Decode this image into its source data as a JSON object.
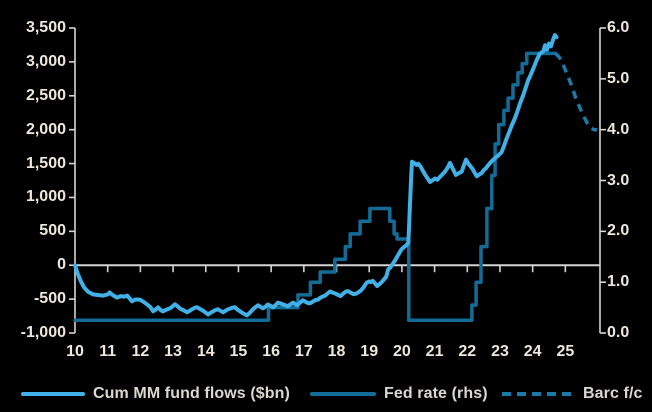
{
  "chart_data": {
    "type": "line",
    "title": "",
    "background": "#000000",
    "axis_color": "#d4d4d4",
    "label_color": "#efe7db",
    "grid": "zero-line-only",
    "x_axis": {
      "range": [
        10,
        26.06
      ],
      "tick_values": [
        10,
        11,
        12,
        13,
        14,
        15,
        16,
        17,
        18,
        19,
        20,
        21,
        22,
        23,
        24,
        25
      ],
      "tick_labels": [
        "10",
        "11",
        "12",
        "13",
        "14",
        "15",
        "16",
        "17",
        "18",
        "19",
        "20",
        "21",
        "22",
        "23",
        "24",
        "25"
      ]
    },
    "y_left": {
      "range": [
        -1000,
        3500
      ],
      "tick_values": [
        3500,
        3000,
        2500,
        2000,
        1500,
        1000,
        500,
        0,
        -500,
        -1000
      ],
      "tick_labels": [
        "3,500",
        "3,000",
        "2,500",
        "2,000",
        "1,500",
        "1,000",
        "500",
        "0",
        "-500",
        "-1,000"
      ]
    },
    "y_right": {
      "range": [
        0,
        6
      ],
      "tick_values": [
        6,
        5,
        4,
        3,
        2,
        1,
        0
      ],
      "tick_labels": [
        "6.0",
        "5.0",
        "4.0",
        "3.0",
        "2.0",
        "1.0",
        "0.0"
      ]
    },
    "series": [
      {
        "name": "Fed rate (rhs)",
        "axis": "right",
        "style": "solid",
        "color": "#136c97",
        "width": 3.5,
        "points": [
          [
            10.0,
            0.25
          ],
          [
            15.92,
            0.25
          ],
          [
            15.92,
            0.5
          ],
          [
            16.82,
            0.5
          ],
          [
            16.82,
            0.75
          ],
          [
            17.2,
            0.75
          ],
          [
            17.2,
            1.0
          ],
          [
            17.5,
            1.0
          ],
          [
            17.5,
            1.2
          ],
          [
            17.95,
            1.2
          ],
          [
            17.95,
            1.45
          ],
          [
            18.27,
            1.45
          ],
          [
            18.27,
            1.7
          ],
          [
            18.42,
            1.7
          ],
          [
            18.42,
            1.95
          ],
          [
            18.72,
            1.95
          ],
          [
            18.72,
            2.2
          ],
          [
            19.02,
            2.2
          ],
          [
            19.02,
            2.45
          ],
          [
            19.63,
            2.45
          ],
          [
            19.63,
            2.2
          ],
          [
            19.76,
            2.2
          ],
          [
            19.76,
            1.95
          ],
          [
            19.85,
            1.95
          ],
          [
            19.85,
            1.85
          ],
          [
            20.21,
            1.85
          ],
          [
            20.21,
            0.25
          ],
          [
            22.14,
            0.25
          ],
          [
            22.14,
            0.55
          ],
          [
            22.27,
            0.55
          ],
          [
            22.27,
            1.0
          ],
          [
            22.42,
            1.0
          ],
          [
            22.42,
            1.7
          ],
          [
            22.6,
            1.7
          ],
          [
            22.6,
            2.45
          ],
          [
            22.75,
            2.45
          ],
          [
            22.75,
            3.1
          ],
          [
            22.85,
            3.1
          ],
          [
            22.85,
            3.72
          ],
          [
            22.96,
            3.72
          ],
          [
            22.96,
            4.1
          ],
          [
            23.12,
            4.1
          ],
          [
            23.12,
            4.38
          ],
          [
            23.25,
            4.38
          ],
          [
            23.25,
            4.62
          ],
          [
            23.4,
            4.62
          ],
          [
            23.4,
            4.88
          ],
          [
            23.55,
            4.88
          ],
          [
            23.55,
            5.12
          ],
          [
            23.68,
            5.12
          ],
          [
            23.68,
            5.3
          ],
          [
            23.82,
            5.3
          ],
          [
            23.82,
            5.5
          ],
          [
            24.7,
            5.5
          ]
        ]
      },
      {
        "name": "Barc f/c",
        "axis": "right",
        "style": "dashed",
        "color": "#1a7aa8",
        "width": 3.5,
        "points": [
          [
            24.7,
            5.5
          ],
          [
            24.82,
            5.42
          ],
          [
            24.95,
            5.25
          ],
          [
            25.08,
            5.05
          ],
          [
            25.2,
            4.85
          ],
          [
            25.32,
            4.62
          ],
          [
            25.45,
            4.42
          ],
          [
            25.57,
            4.25
          ],
          [
            25.68,
            4.12
          ],
          [
            25.78,
            4.03
          ],
          [
            25.88,
            4.0
          ],
          [
            25.97,
            4.0
          ]
        ]
      },
      {
        "name": "Cum MM fund flows ($bn)",
        "axis": "left",
        "style": "solid",
        "color": "#41b0e6",
        "width": 4,
        "points": [
          [
            10.0,
            0
          ],
          [
            10.08,
            -120
          ],
          [
            10.17,
            -230
          ],
          [
            10.28,
            -330
          ],
          [
            10.4,
            -390
          ],
          [
            10.55,
            -430
          ],
          [
            10.7,
            -440
          ],
          [
            10.86,
            -448
          ],
          [
            11.0,
            -430
          ],
          [
            11.06,
            -402
          ],
          [
            11.15,
            -440
          ],
          [
            11.28,
            -478
          ],
          [
            11.4,
            -455
          ],
          [
            11.5,
            -465
          ],
          [
            11.6,
            -448
          ],
          [
            11.74,
            -533
          ],
          [
            11.85,
            -505
          ],
          [
            11.99,
            -510
          ],
          [
            12.1,
            -540
          ],
          [
            12.2,
            -577
          ],
          [
            12.3,
            -615
          ],
          [
            12.39,
            -680
          ],
          [
            12.47,
            -655
          ],
          [
            12.54,
            -622
          ],
          [
            12.62,
            -660
          ],
          [
            12.69,
            -682
          ],
          [
            12.8,
            -655
          ],
          [
            12.91,
            -636
          ],
          [
            13.0,
            -600
          ],
          [
            13.06,
            -577
          ],
          [
            13.15,
            -610
          ],
          [
            13.21,
            -638
          ],
          [
            13.32,
            -665
          ],
          [
            13.43,
            -695
          ],
          [
            13.52,
            -668
          ],
          [
            13.58,
            -650
          ],
          [
            13.66,
            -628
          ],
          [
            13.73,
            -620
          ],
          [
            13.82,
            -645
          ],
          [
            13.91,
            -668
          ],
          [
            14.0,
            -700
          ],
          [
            14.07,
            -726
          ],
          [
            14.15,
            -700
          ],
          [
            14.22,
            -682
          ],
          [
            14.3,
            -660
          ],
          [
            14.37,
            -650
          ],
          [
            14.45,
            -672
          ],
          [
            14.53,
            -695
          ],
          [
            14.6,
            -672
          ],
          [
            14.68,
            -650
          ],
          [
            14.78,
            -632
          ],
          [
            14.89,
            -620
          ],
          [
            14.97,
            -655
          ],
          [
            15.05,
            -682
          ],
          [
            15.15,
            -712
          ],
          [
            15.26,
            -740
          ],
          [
            15.35,
            -700
          ],
          [
            15.44,
            -652
          ],
          [
            15.52,
            -620
          ],
          [
            15.6,
            -592
          ],
          [
            15.68,
            -615
          ],
          [
            15.75,
            -636
          ],
          [
            15.83,
            -610
          ],
          [
            15.9,
            -580
          ],
          [
            15.98,
            -600
          ],
          [
            16.06,
            -622
          ],
          [
            16.14,
            -585
          ],
          [
            16.21,
            -552
          ],
          [
            16.29,
            -565
          ],
          [
            16.36,
            -578
          ],
          [
            16.44,
            -592
          ],
          [
            16.51,
            -606
          ],
          [
            16.59,
            -578
          ],
          [
            16.67,
            -552
          ],
          [
            16.73,
            -570
          ],
          [
            16.79,
            -590
          ],
          [
            16.88,
            -555
          ],
          [
            16.97,
            -518
          ],
          [
            17.05,
            -540
          ],
          [
            17.12,
            -558
          ],
          [
            17.19,
            -562
          ],
          [
            17.28,
            -535
          ],
          [
            17.36,
            -512
          ],
          [
            17.43,
            -510
          ],
          [
            17.5,
            -480
          ],
          [
            17.58,
            -462
          ],
          [
            17.65,
            -448
          ],
          [
            17.73,
            -415
          ],
          [
            17.8,
            -388
          ],
          [
            17.89,
            -405
          ],
          [
            17.98,
            -422
          ],
          [
            18.05,
            -440
          ],
          [
            18.12,
            -455
          ],
          [
            18.2,
            -420
          ],
          [
            18.28,
            -390
          ],
          [
            18.35,
            -382
          ],
          [
            18.44,
            -405
          ],
          [
            18.52,
            -428
          ],
          [
            18.6,
            -420
          ],
          [
            18.67,
            -400
          ],
          [
            18.75,
            -372
          ],
          [
            18.82,
            -330
          ],
          [
            18.92,
            -258
          ],
          [
            19.0,
            -240
          ],
          [
            19.05,
            -248
          ],
          [
            19.11,
            -232
          ],
          [
            19.18,
            -270
          ],
          [
            19.24,
            -306
          ],
          [
            19.3,
            -285
          ],
          [
            19.37,
            -255
          ],
          [
            19.45,
            -212
          ],
          [
            19.52,
            -170
          ],
          [
            19.58,
            -62
          ],
          [
            19.65,
            -30
          ],
          [
            19.72,
            20
          ],
          [
            19.79,
            70
          ],
          [
            19.84,
            114
          ],
          [
            19.92,
            180
          ],
          [
            19.99,
            237
          ],
          [
            20.07,
            270
          ],
          [
            20.14,
            296
          ],
          [
            20.2,
            340
          ],
          [
            20.24,
            800
          ],
          [
            20.28,
            1280
          ],
          [
            20.31,
            1528
          ],
          [
            20.38,
            1505
          ],
          [
            20.45,
            1480
          ],
          [
            20.5,
            1497
          ],
          [
            20.57,
            1460
          ],
          [
            20.64,
            1395
          ],
          [
            20.72,
            1330
          ],
          [
            20.8,
            1270
          ],
          [
            20.86,
            1228
          ],
          [
            20.94,
            1255
          ],
          [
            21.02,
            1280
          ],
          [
            21.09,
            1262
          ],
          [
            21.16,
            1302
          ],
          [
            21.24,
            1340
          ],
          [
            21.31,
            1376
          ],
          [
            21.4,
            1440
          ],
          [
            21.47,
            1509
          ],
          [
            21.55,
            1430
          ],
          [
            21.62,
            1360
          ],
          [
            21.65,
            1332
          ],
          [
            21.73,
            1355
          ],
          [
            21.83,
            1381
          ],
          [
            21.9,
            1480
          ],
          [
            21.96,
            1558
          ],
          [
            22.03,
            1500
          ],
          [
            22.1,
            1460
          ],
          [
            22.16,
            1421
          ],
          [
            22.23,
            1360
          ],
          [
            22.29,
            1312
          ],
          [
            22.37,
            1340
          ],
          [
            22.44,
            1361
          ],
          [
            22.5,
            1400
          ],
          [
            22.57,
            1430
          ],
          [
            22.65,
            1480
          ],
          [
            22.72,
            1520
          ],
          [
            22.8,
            1558
          ],
          [
            22.87,
            1590
          ],
          [
            22.95,
            1620
          ],
          [
            23.05,
            1668
          ],
          [
            23.13,
            1770
          ],
          [
            23.2,
            1865
          ],
          [
            23.28,
            1960
          ],
          [
            23.36,
            2062
          ],
          [
            23.44,
            2150
          ],
          [
            23.51,
            2235
          ],
          [
            23.61,
            2383
          ],
          [
            23.69,
            2480
          ],
          [
            23.76,
            2580
          ],
          [
            23.86,
            2727
          ],
          [
            23.94,
            2810
          ],
          [
            24.02,
            2900
          ],
          [
            24.12,
            3023
          ],
          [
            24.22,
            3122
          ],
          [
            24.28,
            3140
          ],
          [
            24.33,
            3160
          ],
          [
            24.38,
            3245
          ],
          [
            24.44,
            3180
          ],
          [
            24.5,
            3270
          ],
          [
            24.56,
            3230
          ],
          [
            24.62,
            3320
          ],
          [
            24.68,
            3395
          ],
          [
            24.73,
            3365
          ]
        ]
      }
    ],
    "legend_position": "bottom"
  },
  "legend": {
    "items": [
      {
        "label": "Cum MM fund flows ($bn)",
        "style": "solid",
        "color": "#41b0e6"
      },
      {
        "label": "Fed rate (rhs)",
        "style": "solid",
        "color": "#136c97"
      },
      {
        "label": "Barc f/c",
        "style": "dashed",
        "color": "#1a7aa8"
      }
    ]
  }
}
